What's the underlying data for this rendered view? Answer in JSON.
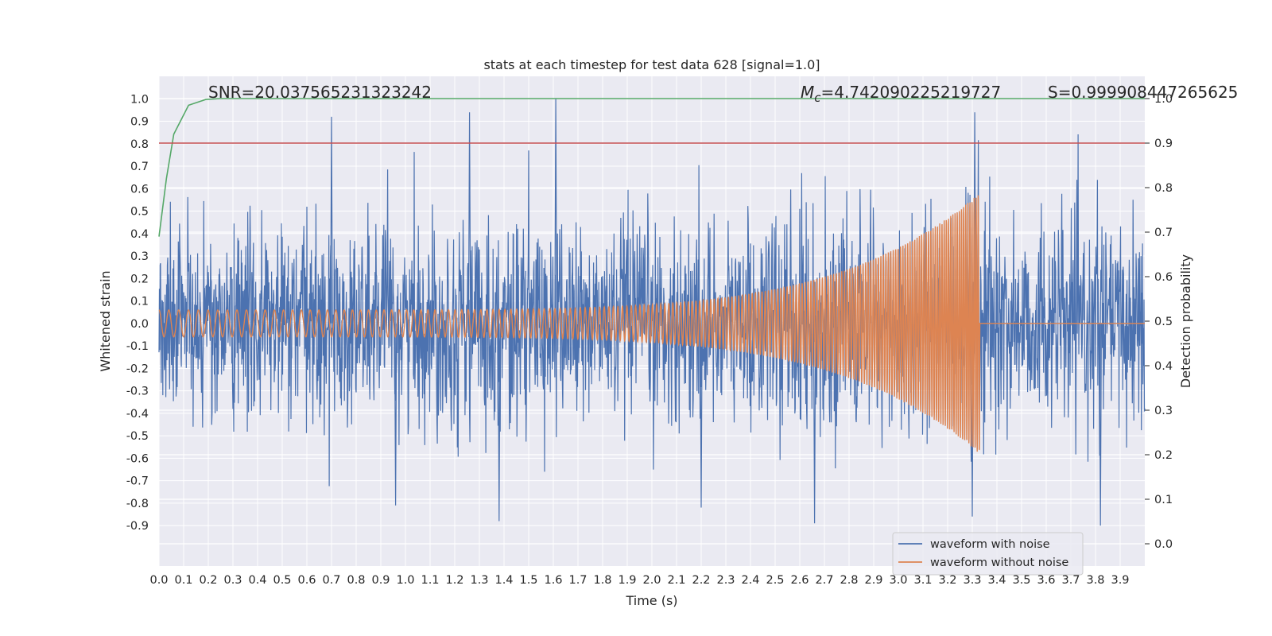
{
  "chart_data": {
    "type": "line",
    "title": "stats at each timestep for test data 628 [signal=1.0]",
    "xlabel": "Time (s)",
    "ylabel": "Whitened strain",
    "y2label": "Detection probability",
    "xlim": [
      0.0,
      4.0
    ],
    "ylim": [
      -1.08,
      1.1
    ],
    "y2lim": [
      -0.05,
      1.05
    ],
    "xticks": [
      "0.0",
      "0.1",
      "0.2",
      "0.3",
      "0.4",
      "0.5",
      "0.6",
      "0.7",
      "0.8",
      "0.9",
      "1.0",
      "1.1",
      "1.2",
      "1.3",
      "1.4",
      "1.5",
      "1.6",
      "1.7",
      "1.8",
      "1.9",
      "2.0",
      "2.1",
      "2.2",
      "2.3",
      "2.4",
      "2.5",
      "2.6",
      "2.7",
      "2.8",
      "2.9",
      "3.0",
      "3.1",
      "3.2",
      "3.3",
      "3.4",
      "3.5",
      "3.6",
      "3.7",
      "3.8",
      "3.9"
    ],
    "yticks": [
      "-0.9",
      "-0.8",
      "-0.7",
      "-0.6",
      "-0.5",
      "-0.4",
      "-0.3",
      "-0.2",
      "-0.1",
      "0.0",
      "0.1",
      "0.2",
      "0.3",
      "0.4",
      "0.5",
      "0.6",
      "0.7",
      "0.8",
      "0.9",
      "1.0"
    ],
    "y2ticks": [
      "0.0",
      "0.1",
      "0.2",
      "0.3",
      "0.4",
      "0.5",
      "0.6",
      "0.7",
      "0.8",
      "0.9",
      "1.0"
    ],
    "grid": true,
    "legend_placement": "lower-right",
    "annotations": {
      "snr": "SNR=20.037565231323242",
      "mc_prefix": "M",
      "mc_sub": "c",
      "mc_value": "=4.742090225219727",
      "s": "S=0.999908447265625"
    },
    "series": [
      {
        "name": "waveform with noise",
        "color": "#4c72b0",
        "description_points": "noisy whitened strain, amplitude roughly within -0.9..1.0",
        "noise_sigma": 0.22,
        "peaks": [
          {
            "x": 0.7,
            "y": 0.92
          },
          {
            "x": 1.61,
            "y": 1.0
          },
          {
            "x": 1.26,
            "y": 0.94
          },
          {
            "x": 3.31,
            "y": 0.94
          },
          {
            "x": 1.38,
            "y": -0.88
          },
          {
            "x": 2.66,
            "y": -0.89
          },
          {
            "x": 3.82,
            "y": -0.9
          },
          {
            "x": 2.2,
            "y": -0.82
          },
          {
            "x": 0.96,
            "y": -0.81
          },
          {
            "x": 3.3,
            "y": -0.86
          }
        ]
      },
      {
        "name": "waveform without noise",
        "color": "#dd8452",
        "chirp_start": 0.0,
        "chirp_end": 3.33,
        "amp_start": 0.06,
        "amp_end": 0.58,
        "freq_start": 25,
        "freq_end": 120
      },
      {
        "name": "",
        "color": "#55a868",
        "axis": "right",
        "x": [
          0.0,
          0.03,
          0.06,
          0.12,
          0.19,
          0.25,
          0.3,
          4.0
        ],
        "y": [
          0.69,
          0.82,
          0.92,
          0.985,
          0.998,
          1.0,
          1.0,
          1.0
        ]
      },
      {
        "name": "",
        "color": "#c44e52",
        "axis": "right",
        "x": [
          0.0,
          4.0
        ],
        "y": [
          0.9,
          0.9
        ]
      }
    ]
  }
}
